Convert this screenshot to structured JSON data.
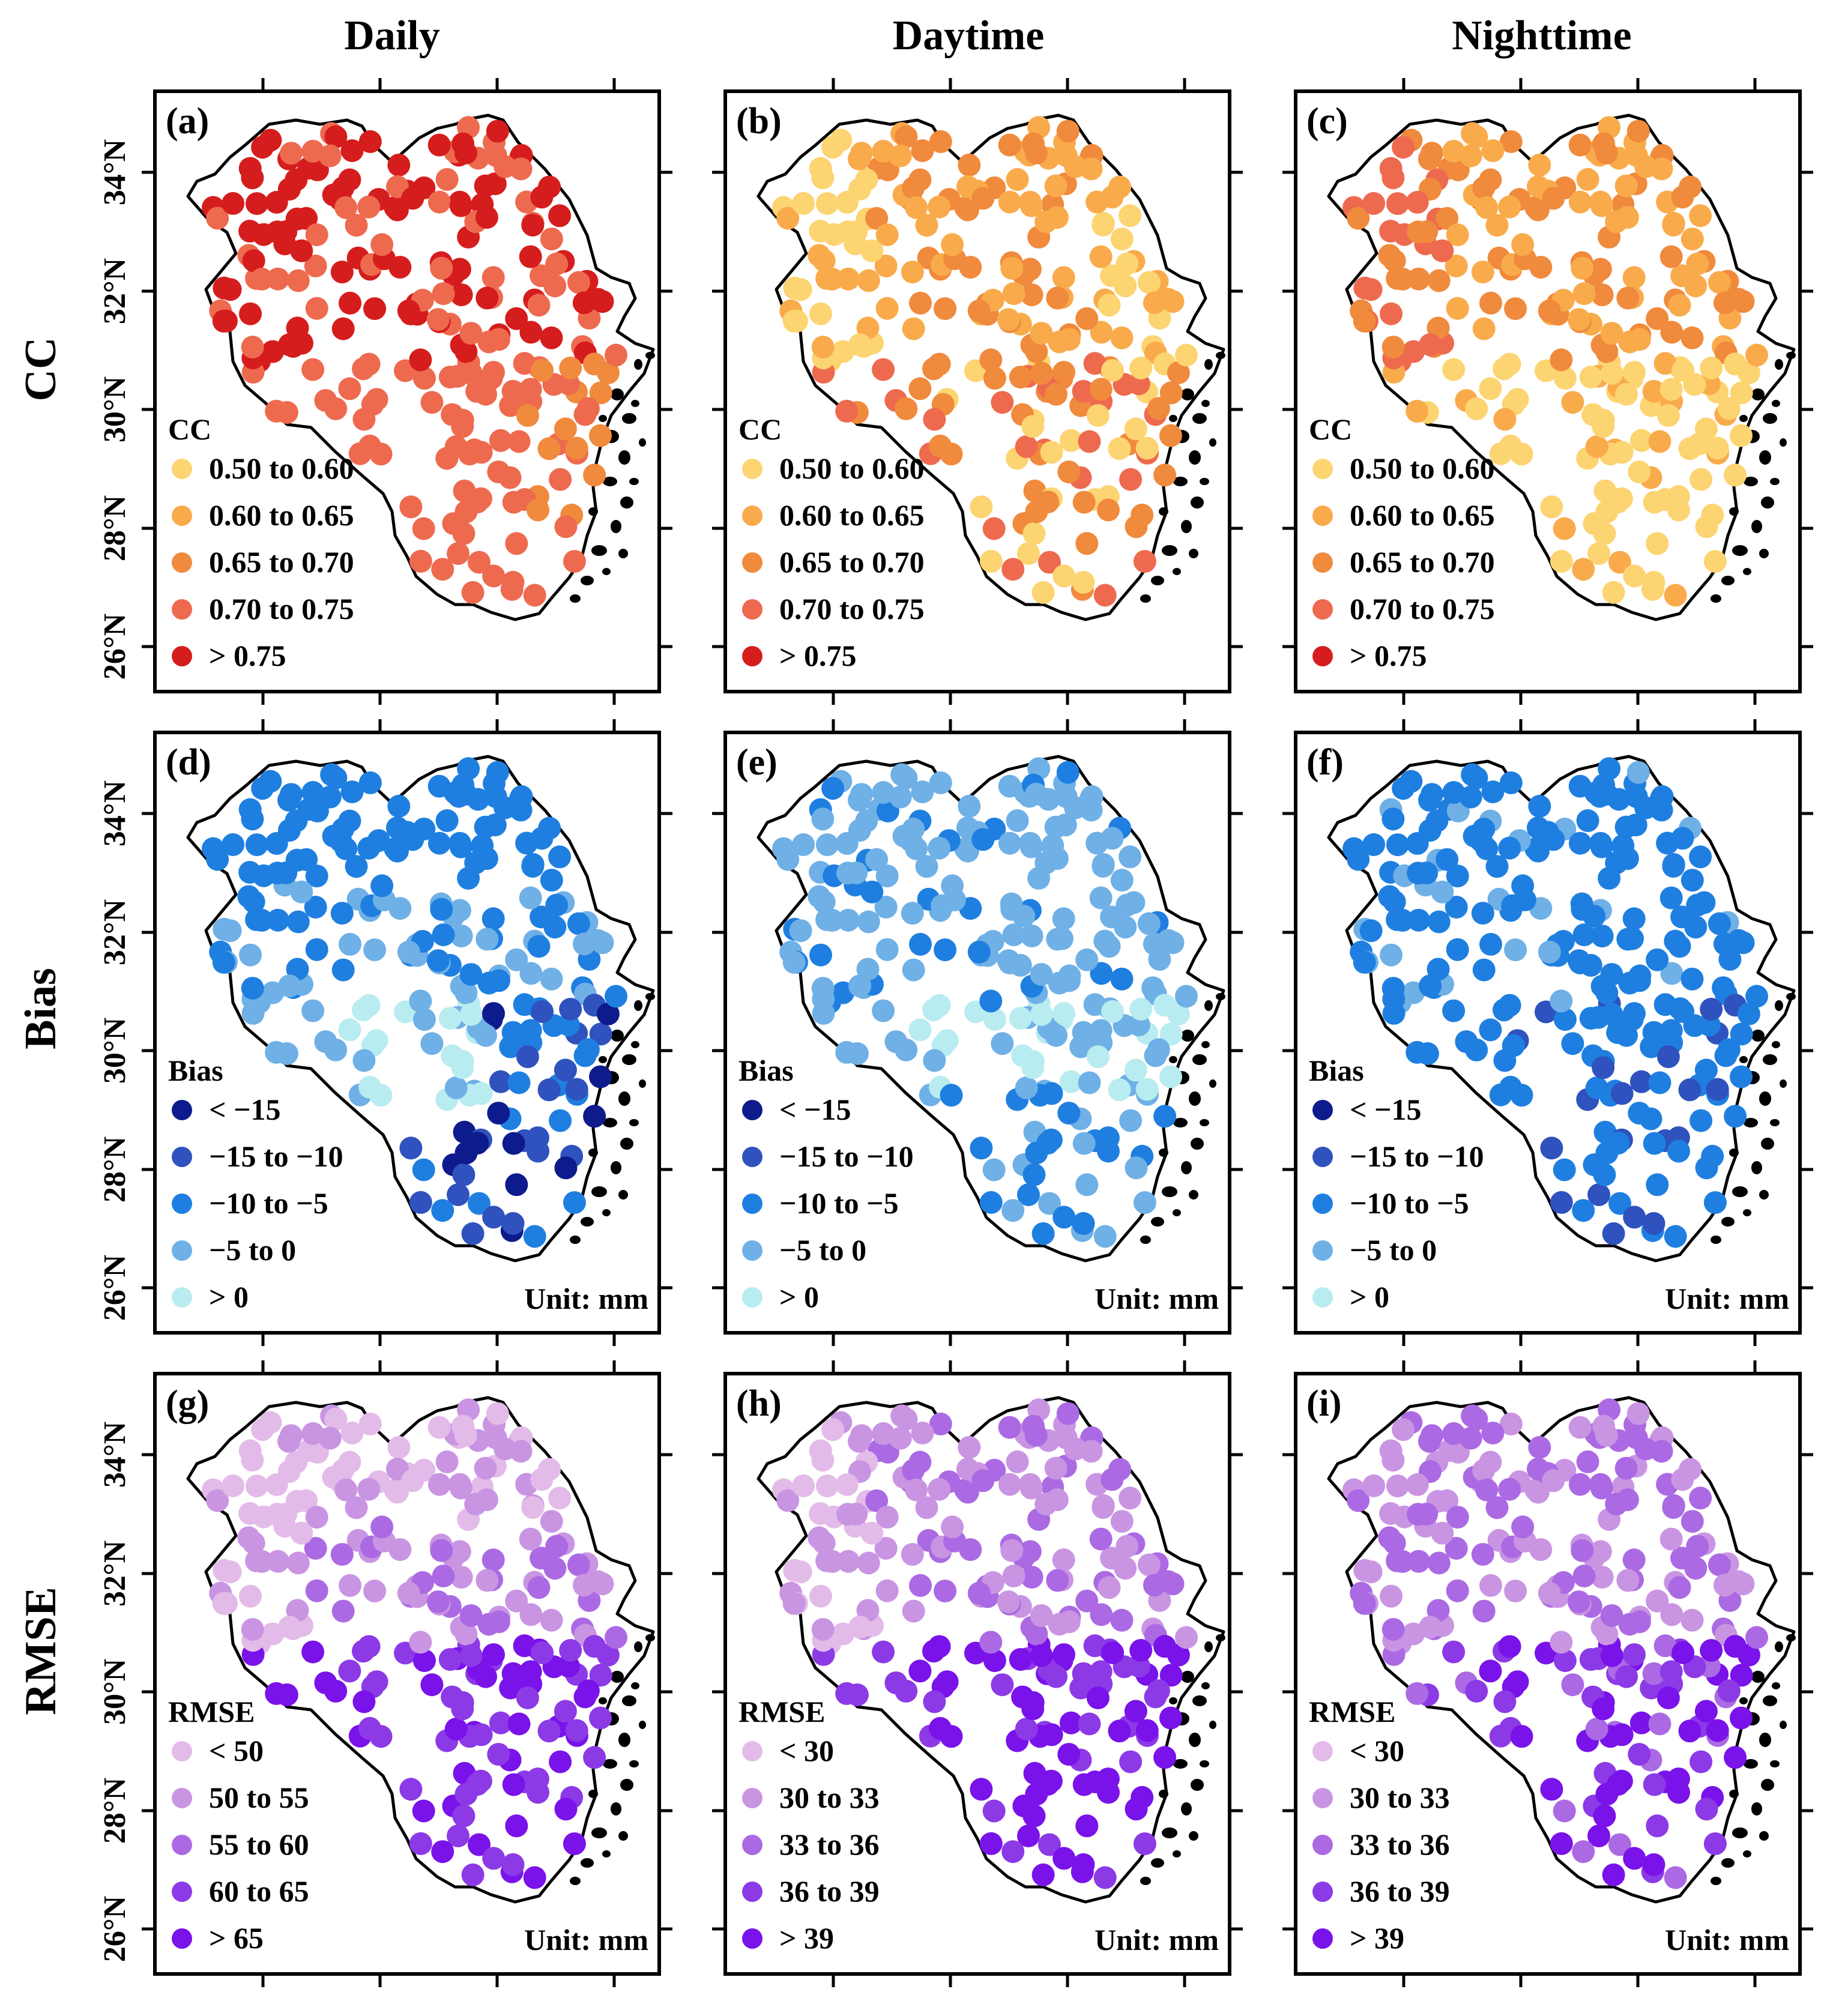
{
  "figure": {
    "columns": [
      "Daily",
      "Daytime",
      "Nighttime"
    ],
    "rows": [
      "CC",
      "Bias",
      "RMSE"
    ],
    "latitude_labels": [
      "34°N",
      "32°N",
      "30°N",
      "28°N",
      "26°N"
    ]
  },
  "panels": [
    {
      "label": "(a)",
      "metric": "CC",
      "period": "Daily",
      "unit": ""
    },
    {
      "label": "(b)",
      "metric": "CC",
      "period": "Daytime",
      "unit": ""
    },
    {
      "label": "(c)",
      "metric": "CC",
      "period": "Nighttime",
      "unit": ""
    },
    {
      "label": "(d)",
      "metric": "Bias",
      "period": "Daily",
      "unit": "Unit: mm"
    },
    {
      "label": "(e)",
      "metric": "Bias",
      "period": "Daytime",
      "unit": "Unit: mm"
    },
    {
      "label": "(f)",
      "metric": "Bias",
      "period": "Nighttime",
      "unit": "Unit: mm"
    },
    {
      "label": "(g)",
      "metric": "RMSE",
      "period": "Daily",
      "unit": "Unit: mm"
    },
    {
      "label": "(h)",
      "metric": "RMSE",
      "period": "Daytime",
      "unit": "Unit: mm"
    },
    {
      "label": "(i)",
      "metric": "RMSE",
      "period": "Nighttime",
      "unit": "Unit: mm"
    }
  ],
  "legends": {
    "CC": {
      "title": "CC",
      "classes": [
        "0.50 to 0.60",
        "0.60 to 0.65",
        "0.65 to 0.70",
        "0.70 to 0.75",
        "> 0.75"
      ],
      "colors": [
        "#fdd472",
        "#f9ab4b",
        "#f08a3c",
        "#ee6a4f",
        "#d51d1d"
      ]
    },
    "Bias": {
      "title": "Bias",
      "classes": [
        "< −15",
        "−15 to −10",
        "−10 to −5",
        "−5 to 0",
        "> 0"
      ],
      "colors": [
        "#0d1b8c",
        "#2f52be",
        "#1f7fe0",
        "#6fb0e6",
        "#b9ecf0"
      ]
    },
    "RMSE_daily": {
      "title": "RMSE",
      "classes": [
        "< 50",
        "50 to 55",
        "55 to 60",
        "60 to 65",
        "> 65"
      ],
      "colors": [
        "#e3bbe8",
        "#c995e3",
        "#ab6ae3",
        "#8c3ae6",
        "#7a12ea"
      ]
    },
    "RMSE_subdaily": {
      "title": "RMSE",
      "classes": [
        "< 30",
        "30 to 33",
        "33 to 36",
        "36 to 39",
        "> 39"
      ],
      "colors": [
        "#e3bbe8",
        "#c995e3",
        "#ab6ae3",
        "#8c3ae6",
        "#7a12ea"
      ]
    }
  },
  "stations": {
    "grid": "approximate rain-gauge station network (class index per station)"
  }
}
